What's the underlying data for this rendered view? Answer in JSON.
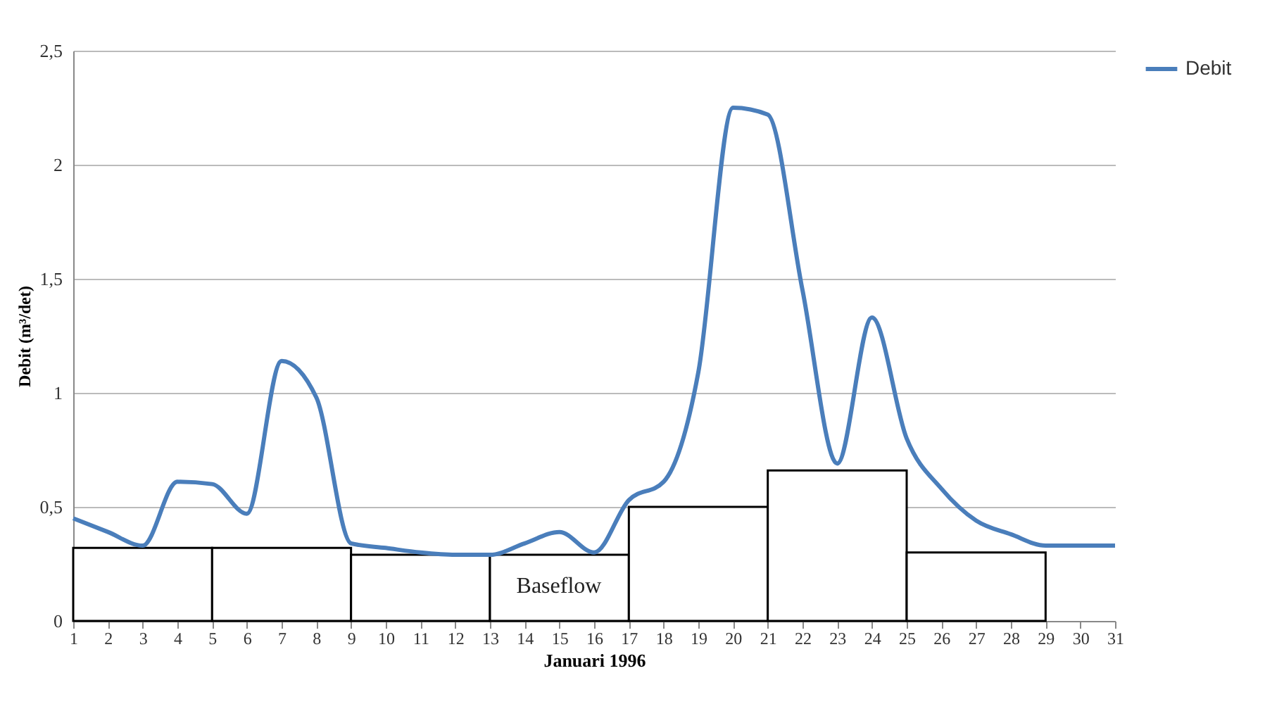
{
  "chart_data": {
    "type": "line",
    "xlabel": "Januari 1996",
    "ylabel": "Debit (m³/det)",
    "x": [
      1,
      2,
      3,
      4,
      5,
      6,
      7,
      8,
      9,
      10,
      11,
      12,
      13,
      14,
      15,
      16,
      17,
      18,
      19,
      20,
      21,
      22,
      23,
      24,
      25,
      26,
      27,
      28,
      29,
      30,
      31
    ],
    "xlim": [
      1,
      31
    ],
    "xticks": [
      1,
      2,
      3,
      4,
      5,
      6,
      7,
      8,
      9,
      10,
      11,
      12,
      13,
      14,
      15,
      16,
      17,
      18,
      19,
      20,
      21,
      22,
      23,
      24,
      25,
      26,
      27,
      28,
      29,
      30,
      31
    ],
    "ylim": [
      0,
      2.5
    ],
    "yticks": [
      0,
      {
        "value": 0.5,
        "label": "0,5"
      },
      1,
      {
        "value": 1.5,
        "label": "1,5"
      },
      2,
      {
        "value": 2.5,
        "label": "2,5"
      }
    ],
    "series": [
      {
        "type": "histogram",
        "color": "#ffffff",
        "bins": [
          1,
          5,
          9,
          13,
          17,
          21,
          25,
          29
        ],
        "values": [
          0.32,
          0.32,
          0.29,
          0.29,
          0.5,
          0.66,
          0.3
        ]
      },
      {
        "name": "Debit",
        "color": "#4a7ebb",
        "values": [
          0.45,
          0.39,
          0.33,
          0.61,
          0.6,
          0.47,
          1.14,
          0.98,
          0.34,
          0.32,
          0.3,
          0.29,
          0.29,
          0.34,
          0.39,
          0.3,
          0.53,
          0.61,
          1.09,
          2.25,
          2.22,
          1.45,
          0.69,
          1.33,
          0.8,
          0.58,
          0.44,
          0.38,
          0.33,
          0.33,
          0.33
        ]
      }
    ],
    "annotations": [
      "Baseflow"
    ],
    "grid": "y",
    "legend": "right"
  }
}
